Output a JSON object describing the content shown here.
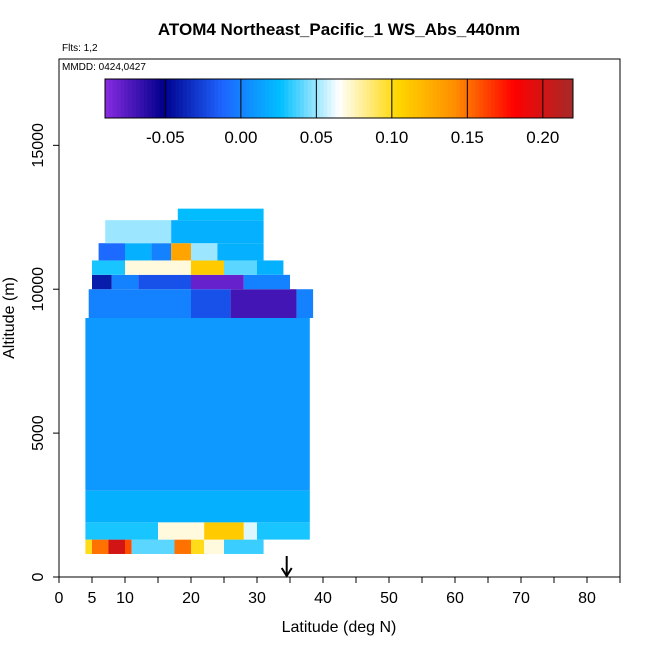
{
  "chart_data": {
    "type": "heatmap",
    "title": "ATOM4 Northeast_Pacific_1 WS_Abs_440nm",
    "flights_note": "Flts: 1,2",
    "mmdd_note": "MMDD: 0424,0427",
    "xlabel": "Latitude (deg N)",
    "ylabel": "Altitude (m)",
    "xlim": [
      0,
      85
    ],
    "ylim": [
      0,
      18000
    ],
    "x_ticks": [
      0,
      5,
      10,
      20,
      30,
      40,
      50,
      60,
      70,
      80
    ],
    "y_ticks": [
      0,
      5000,
      10000,
      15000
    ],
    "grid": false,
    "colorbar": {
      "placement": "top-inside",
      "range": [
        -0.09,
        0.22
      ],
      "ticks": [
        "-0.05",
        "0.00",
        "0.05",
        "0.10",
        "0.15",
        "0.20"
      ],
      "tick_values": [
        -0.05,
        0.0,
        0.05,
        0.1,
        0.15,
        0.2
      ],
      "colors": [
        "#8a2be2",
        "#00008b",
        "#1e64ff",
        "#00bfff",
        "#ffffff",
        "#ffd700",
        "#ff8c00",
        "#ff0000",
        "#a52a2a"
      ]
    },
    "marker": {
      "type": "arrow",
      "x": 34.5
    },
    "cells_description_rows": [
      {
        "alt": [
          800,
          1300
        ],
        "lat_segments": [
          [
            4.0,
            5.0,
            0.1
          ],
          [
            5.0,
            7.5,
            0.15
          ],
          [
            7.5,
            10.0,
            0.2
          ],
          [
            10.0,
            11.0,
            0.16
          ],
          [
            11.0,
            17.5,
            0.04
          ],
          [
            17.5,
            20.0,
            0.15
          ],
          [
            20.0,
            22.0,
            0.1
          ],
          [
            22.0,
            25.0,
            0.07
          ],
          [
            25.0,
            31.0,
            0.035
          ]
        ]
      },
      {
        "alt": [
          1300,
          1900
        ],
        "lat_segments": [
          [
            4.0,
            15.0,
            0.03
          ],
          [
            15.0,
            22.0,
            0.07
          ],
          [
            22.0,
            28.0,
            0.11
          ],
          [
            28.0,
            30.0,
            0.06
          ],
          [
            30.0,
            38.0,
            0.03
          ]
        ]
      },
      {
        "alt": [
          1900,
          3000
        ],
        "lat_segments": [
          [
            4.0,
            38.0,
            0.02
          ]
        ]
      },
      {
        "alt": [
          3000,
          9000
        ],
        "lat_segments": [
          [
            4.0,
            38.0,
            0.01
          ]
        ]
      },
      {
        "alt": [
          9000,
          10000
        ],
        "lat_segments": [
          [
            4.5,
            20.0,
            0.0
          ],
          [
            20.0,
            26.0,
            -0.02
          ],
          [
            26.0,
            36.0,
            -0.07
          ],
          [
            36.0,
            38.5,
            0.0
          ]
        ]
      },
      {
        "alt": [
          10000,
          10500
        ],
        "lat_segments": [
          [
            5.0,
            8.0,
            -0.04
          ],
          [
            8.0,
            12.0,
            0.0
          ],
          [
            12.0,
            20.0,
            -0.02
          ],
          [
            20.0,
            28.0,
            -0.08
          ],
          [
            28.0,
            35.0,
            0.0
          ]
        ]
      },
      {
        "alt": [
          10500,
          11000
        ],
        "lat_segments": [
          [
            5.0,
            10.0,
            0.03
          ],
          [
            10.0,
            20.0,
            0.07
          ],
          [
            20.0,
            25.0,
            0.11
          ],
          [
            25.0,
            30.0,
            0.04
          ],
          [
            30.0,
            34.0,
            0.02
          ]
        ]
      },
      {
        "alt": [
          11000,
          11600
        ],
        "lat_segments": [
          [
            6.0,
            10.0,
            -0.01
          ],
          [
            10.0,
            14.0,
            0.02
          ],
          [
            14.0,
            17.0,
            0.0
          ],
          [
            17.0,
            20.0,
            0.13
          ],
          [
            20.0,
            24.0,
            0.05
          ],
          [
            24.0,
            31.0,
            0.02
          ]
        ]
      },
      {
        "alt": [
          11600,
          12400
        ],
        "lat_segments": [
          [
            7.0,
            17.0,
            0.05
          ],
          [
            17.0,
            31.0,
            0.02
          ]
        ]
      },
      {
        "alt": [
          12400,
          12800
        ],
        "lat_segments": [
          [
            18.0,
            31.0,
            0.025
          ]
        ]
      }
    ]
  }
}
